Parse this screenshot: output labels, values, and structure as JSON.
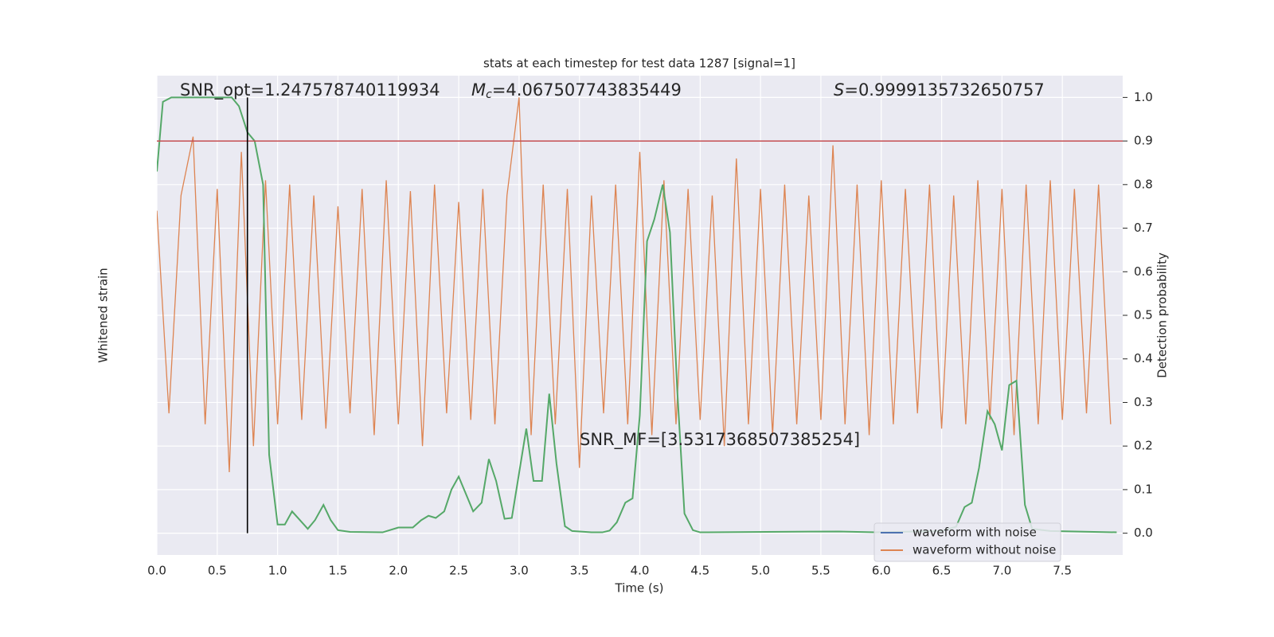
{
  "chart_data": {
    "type": "line",
    "title": "stats at each timestep for test data 1287 [signal=1]",
    "xlabel": "Time (s)",
    "ylabel": "Whitened strain",
    "y2label": "Detection probability",
    "xlim": [
      0,
      8
    ],
    "xticks": [
      {
        "value": 0,
        "label": "0.0"
      },
      0.5,
      {
        "value": 1,
        "label": "1.0"
      },
      1.5,
      {
        "value": 2,
        "label": "2.0"
      },
      2.5,
      {
        "value": 3,
        "label": "3.0"
      },
      3.5,
      {
        "value": 4,
        "label": "4.0"
      },
      4.5,
      {
        "value": 5,
        "label": "5.0"
      },
      5.5,
      {
        "value": 6,
        "label": "6.0"
      },
      6.5,
      {
        "value": 7,
        "label": "7.0"
      },
      7.5
    ],
    "ylim": [
      -1.1,
      1.1
    ],
    "y2lim": [
      -0.05,
      1.05
    ],
    "y2ticks": [
      {
        "value": 0,
        "label": "0.0"
      },
      0.1,
      0.2,
      0.3,
      0.4,
      0.5,
      0.6,
      0.7,
      0.8,
      0.9,
      {
        "value": 1,
        "label": "1.0"
      }
    ],
    "grid": true,
    "legend": "lower right",
    "series": [
      {
        "name": "waveform with noise",
        "color": "#4c72b0",
        "x": [],
        "values": []
      },
      {
        "name": "waveform without noise",
        "color": "#dd8452",
        "x": [
          0,
          0.1,
          0.2,
          0.3,
          0.4,
          0.5,
          0.6,
          0.7,
          0.8,
          0.9,
          1,
          1.1,
          1.2,
          1.3,
          1.4,
          1.5,
          1.6,
          1.7,
          1.8,
          1.9,
          2,
          2.1,
          2.2,
          2.3,
          2.4,
          2.5,
          2.6,
          2.7,
          2.8,
          2.9,
          3,
          3.1,
          3.2,
          3.3,
          3.4,
          3.5,
          3.6,
          3.7,
          3.8,
          3.9,
          4,
          4.1,
          4.2,
          4.3,
          4.4,
          4.5,
          4.6,
          4.7,
          4.8,
          4.9,
          5,
          5.1,
          5.2,
          5.3,
          5.4,
          5.5,
          5.6,
          5.7,
          5.8,
          5.9,
          6,
          6.1,
          6.2,
          6.3,
          6.4,
          6.5,
          6.6,
          6.7,
          6.8,
          6.9,
          7,
          7.1,
          7.2,
          7.3,
          7.4,
          7.5,
          7.6,
          7.7,
          7.8,
          7.9
        ],
        "values": [
          0.48,
          -0.45,
          0.55,
          0.82,
          -0.5,
          0.58,
          -0.72,
          0.75,
          -0.6,
          0.62,
          -0.5,
          0.6,
          -0.48,
          0.55,
          -0.52,
          0.5,
          -0.45,
          0.58,
          -0.55,
          0.62,
          -0.5,
          0.57,
          -0.6,
          0.6,
          -0.45,
          0.52,
          -0.48,
          0.58,
          -0.5,
          0.55,
          1.0,
          -0.55,
          0.6,
          -0.5,
          0.58,
          -0.7,
          0.55,
          -0.45,
          0.6,
          -0.5,
          0.75,
          -0.55,
          0.62,
          -0.5,
          0.58,
          -0.48,
          0.55,
          -0.6,
          0.72,
          -0.5,
          0.58,
          -0.55,
          0.6,
          -0.5,
          0.55,
          -0.48,
          0.78,
          -0.5,
          0.6,
          -0.55,
          0.62,
          -0.5,
          0.58,
          -0.45,
          0.6,
          -0.52,
          0.55,
          -0.5,
          0.62,
          -0.48,
          0.58,
          -0.55,
          0.6,
          -0.5,
          0.62,
          -0.48,
          0.58,
          -0.45,
          0.6,
          -0.5
        ]
      },
      {
        "color": "#55a868",
        "axis": "y2",
        "x": [
          0,
          0.05,
          0.12,
          0.62,
          0.68,
          0.75,
          0.81,
          0.88,
          0.93,
          1.0,
          1.06,
          1.12,
          1.25,
          1.31,
          1.38,
          1.44,
          1.5,
          1.6,
          1.87,
          2.0,
          2.12,
          2.19,
          2.25,
          2.31,
          2.38,
          2.44,
          2.5,
          2.56,
          2.62,
          2.69,
          2.75,
          2.81,
          2.88,
          2.94,
          3.06,
          3.12,
          3.19,
          3.25,
          3.31,
          3.38,
          3.44,
          3.6,
          3.69,
          3.75,
          3.81,
          3.88,
          3.94,
          4.0,
          4.06,
          4.12,
          4.19,
          4.25,
          4.31,
          4.37,
          4.44,
          4.5,
          5.65,
          5.95,
          6.5,
          6.62,
          6.69,
          6.75,
          6.81,
          6.88,
          6.94,
          7.0,
          7.06,
          7.12,
          7.19,
          7.25,
          7.4,
          7.95
        ],
        "values": [
          0.83,
          0.99,
          1.0,
          1.0,
          0.98,
          0.92,
          0.9,
          0.8,
          0.18,
          0.02,
          0.02,
          0.05,
          0.01,
          0.03,
          0.065,
          0.03,
          0.007,
          0.003,
          0.002,
          0.013,
          0.013,
          0.03,
          0.04,
          0.035,
          0.05,
          0.1,
          0.13,
          0.09,
          0.05,
          0.07,
          0.17,
          0.12,
          0.033,
          0.035,
          0.24,
          0.12,
          0.12,
          0.32,
          0.16,
          0.016,
          0.005,
          0.002,
          0.002,
          0.006,
          0.025,
          0.07,
          0.08,
          0.27,
          0.67,
          0.72,
          0.8,
          0.69,
          0.33,
          0.045,
          0.007,
          0.002,
          0.004,
          0.002,
          0.005,
          0.015,
          0.06,
          0.07,
          0.15,
          0.28,
          0.25,
          0.19,
          0.34,
          0.35,
          0.065,
          0.01,
          0.005,
          0.002
        ]
      }
    ],
    "hlines": [
      {
        "y": 0.9,
        "color": "#c44e52",
        "axis": "y2"
      }
    ],
    "vlines": [
      {
        "x": 0.75,
        "color": "#000000",
        "ymin": 0,
        "ymax": 1,
        "axis": "y2"
      }
    ],
    "annotations": [
      {
        "text": "SNR_opt=1.247578740119934"
      },
      {
        "symbol": "M",
        "subscript": "c",
        "text": "=4.067507743835449"
      },
      {
        "symbol": "S",
        "text": "=0.9999135732650757"
      },
      {
        "text": "SNR_MF=[3.5317368507385254]"
      }
    ]
  }
}
